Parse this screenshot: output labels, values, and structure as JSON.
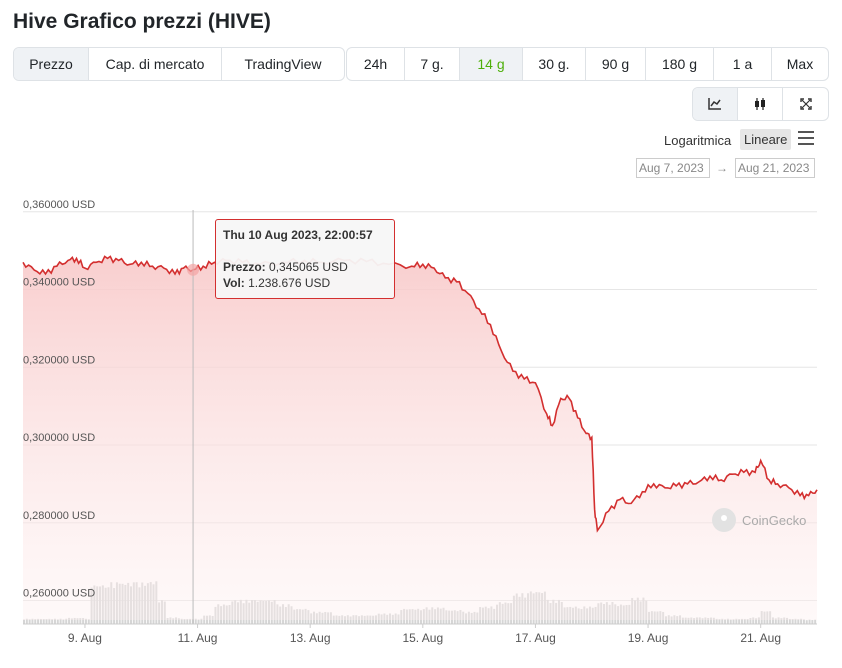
{
  "page_title": "Hive Grafico prezzi (HIVE)",
  "view_tabs": [
    {
      "label": "Prezzo",
      "active": true
    },
    {
      "label": "Cap. di mercato",
      "active": false
    },
    {
      "label": "TradingView",
      "active": false
    }
  ],
  "range_tabs": [
    {
      "label": "24h",
      "active": false
    },
    {
      "label": "7 g.",
      "active": false
    },
    {
      "label": "14 g",
      "active": true
    },
    {
      "label": "30 g.",
      "active": false
    },
    {
      "label": "90 g",
      "active": false
    },
    {
      "label": "180 g",
      "active": false
    },
    {
      "label": "1 a",
      "active": false
    },
    {
      "label": "Max",
      "active": false
    }
  ],
  "chart_type_icons": [
    "line-chart-icon",
    "candlestick-icon",
    "expand-icon"
  ],
  "scale": {
    "log_label": "Logaritmica",
    "linear_label": "Lineare",
    "selected": "Lineare"
  },
  "date_range": {
    "from": "Aug 7, 2023",
    "to": "Aug 21, 2023",
    "arrow": "→"
  },
  "tooltip": {
    "title": "Thu 10 Aug 2023, 22:00:57",
    "price_label": "Prezzo:",
    "price_value": "0,345065 USD",
    "vol_label": "Vol:",
    "vol_value": "1.238.676 USD"
  },
  "watermark": "CoinGecko",
  "colors": {
    "line": "#d32f2f",
    "area_top": "#f8c9c9",
    "accent_green": "#4eaf0a",
    "volume": "#d5d5d5"
  },
  "chart_data": {
    "type": "line",
    "series": [
      {
        "values": [
          [
            7.9,
            0.347
          ],
          [
            8.1,
            0.345
          ],
          [
            8.3,
            0.344
          ],
          [
            8.5,
            0.346
          ],
          [
            8.7,
            0.3475
          ],
          [
            8.85,
            0.348
          ],
          [
            9.0,
            0.3455
          ],
          [
            9.2,
            0.347
          ],
          [
            9.4,
            0.348
          ],
          [
            9.6,
            0.3475
          ],
          [
            9.8,
            0.3465
          ],
          [
            10.0,
            0.347
          ],
          [
            10.2,
            0.346
          ],
          [
            10.4,
            0.3455
          ],
          [
            10.6,
            0.344
          ],
          [
            10.75,
            0.3455
          ],
          [
            10.92,
            0.3451
          ],
          [
            11.1,
            0.346
          ],
          [
            11.3,
            0.347
          ],
          [
            11.5,
            0.3475
          ],
          [
            11.8,
            0.347
          ],
          [
            12.1,
            0.3465
          ],
          [
            12.5,
            0.347
          ],
          [
            12.9,
            0.3475
          ],
          [
            13.2,
            0.347
          ],
          [
            13.6,
            0.3475
          ],
          [
            14.0,
            0.3472
          ],
          [
            14.4,
            0.3465
          ],
          [
            14.8,
            0.346
          ],
          [
            15.0,
            0.3465
          ],
          [
            15.2,
            0.3455
          ],
          [
            15.4,
            0.343
          ],
          [
            15.6,
            0.342
          ],
          [
            15.8,
            0.339
          ],
          [
            16.0,
            0.335
          ],
          [
            16.2,
            0.331
          ],
          [
            16.4,
            0.324
          ],
          [
            16.6,
            0.319
          ],
          [
            16.8,
            0.317
          ],
          [
            17.0,
            0.316
          ],
          [
            17.2,
            0.308
          ],
          [
            17.3,
            0.305
          ],
          [
            17.45,
            0.312
          ],
          [
            17.6,
            0.312
          ],
          [
            17.75,
            0.307
          ],
          [
            17.9,
            0.303
          ],
          [
            18.0,
            0.302
          ],
          [
            18.05,
            0.2835
          ],
          [
            18.1,
            0.278
          ],
          [
            18.3,
            0.283
          ],
          [
            18.5,
            0.286
          ],
          [
            18.7,
            0.285
          ],
          [
            18.9,
            0.288
          ],
          [
            19.1,
            0.29
          ],
          [
            19.3,
            0.289
          ],
          [
            19.5,
            0.2895
          ],
          [
            19.7,
            0.29
          ],
          [
            19.9,
            0.2905
          ],
          [
            20.1,
            0.292
          ],
          [
            20.3,
            0.291
          ],
          [
            20.5,
            0.2925
          ],
          [
            20.7,
            0.293
          ],
          [
            20.9,
            0.293
          ],
          [
            21.0,
            0.296
          ],
          [
            21.15,
            0.291
          ],
          [
            21.3,
            0.29
          ],
          [
            21.5,
            0.289
          ],
          [
            21.7,
            0.287
          ],
          [
            21.85,
            0.287
          ],
          [
            22.0,
            0.2885
          ]
        ]
      }
    ],
    "y_ticks": [
      "0,360000 USD",
      "0,340000 USD",
      "0,320000 USD",
      "0,300000 USD",
      "0,280000 USD",
      "0,260000 USD"
    ],
    "x_ticks": [
      "9. Aug",
      "11. Aug",
      "13. Aug",
      "15. Aug",
      "17. Aug",
      "19. Aug",
      "21. Aug"
    ],
    "ylim": [
      0.255,
      0.362
    ],
    "xlim": [
      7.9,
      22.0
    ],
    "grid": true,
    "volume": {
      "values": [
        [
          7.9,
          0.12
        ],
        [
          8.3,
          0.12
        ],
        [
          8.7,
          0.14
        ],
        [
          9.0,
          0.12
        ],
        [
          9.1,
          0.9
        ],
        [
          9.4,
          0.95
        ],
        [
          9.6,
          0.95
        ],
        [
          9.9,
          0.95
        ],
        [
          10.15,
          0.98
        ],
        [
          10.3,
          0.55
        ],
        [
          10.45,
          0.15
        ],
        [
          10.7,
          0.12
        ],
        [
          10.95,
          0.12
        ],
        [
          11.1,
          0.2
        ],
        [
          11.3,
          0.45
        ],
        [
          11.6,
          0.55
        ],
        [
          12.0,
          0.55
        ],
        [
          12.4,
          0.45
        ],
        [
          12.7,
          0.35
        ],
        [
          13.0,
          0.28
        ],
        [
          13.4,
          0.2
        ],
        [
          13.8,
          0.2
        ],
        [
          14.2,
          0.24
        ],
        [
          14.6,
          0.35
        ],
        [
          15.0,
          0.38
        ],
        [
          15.4,
          0.32
        ],
        [
          15.7,
          0.28
        ],
        [
          16.0,
          0.4
        ],
        [
          16.3,
          0.5
        ],
        [
          16.6,
          0.7
        ],
        [
          16.9,
          0.75
        ],
        [
          17.2,
          0.55
        ],
        [
          17.5,
          0.4
        ],
        [
          17.8,
          0.4
        ],
        [
          18.1,
          0.5
        ],
        [
          18.4,
          0.45
        ],
        [
          18.7,
          0.6
        ],
        [
          19.0,
          0.3
        ],
        [
          19.3,
          0.2
        ],
        [
          19.6,
          0.15
        ],
        [
          19.9,
          0.15
        ],
        [
          20.2,
          0.12
        ],
        [
          20.5,
          0.12
        ],
        [
          20.8,
          0.15
        ],
        [
          21.0,
          0.3
        ],
        [
          21.2,
          0.15
        ],
        [
          21.5,
          0.12
        ],
        [
          21.8,
          0.1
        ],
        [
          22.0,
          0.1
        ]
      ]
    },
    "highlight_x": 10.92
  }
}
